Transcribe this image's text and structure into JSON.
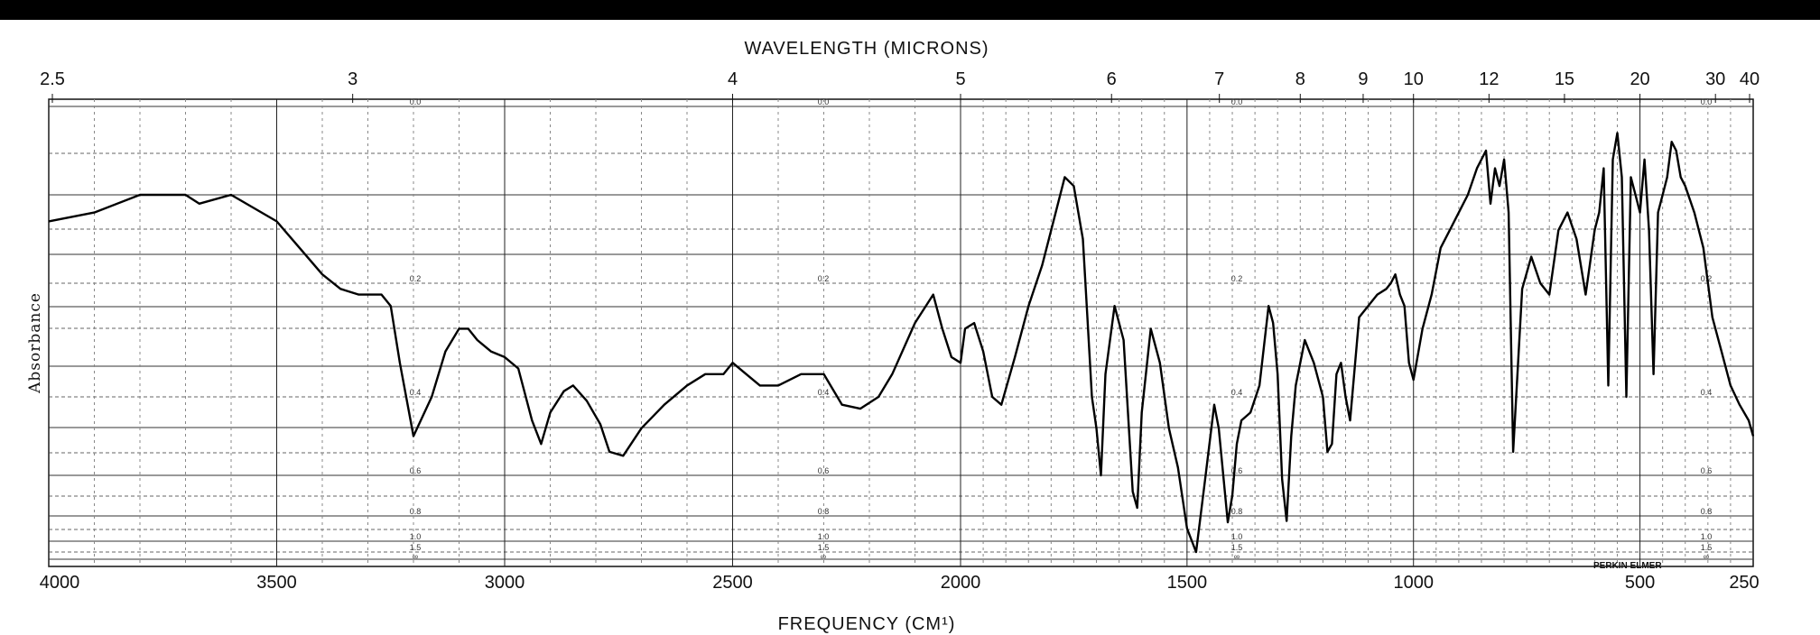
{
  "chart_data": {
    "type": "line",
    "title": "",
    "top_axis_label": "WAVELENGTH (MICRONS)",
    "xlabel": "FREQUENCY (CM¹)",
    "ylabel": "Absorbance",
    "brand": "PERKIN ELMER",
    "x_ticks": [
      "4000",
      "3500",
      "3000",
      "2500",
      "2000",
      "1500",
      "1000",
      "500",
      "250"
    ],
    "top_ticks": [
      "2.5",
      "3",
      "4",
      "5",
      "6",
      "7",
      "8",
      "9",
      "10",
      "12",
      "15",
      "20",
      "30",
      "40"
    ],
    "absorbance_ticks": [
      "0.0",
      "0.2",
      "0.4",
      "0.6",
      "0.8",
      "1.0",
      "1.5",
      "∞"
    ],
    "xlim": [
      4000,
      250
    ],
    "ylim": [
      0,
      1.5
    ],
    "grid": true,
    "series": [
      {
        "name": "",
        "x": [
          4000,
          3900,
          3800,
          3750,
          3700,
          3670,
          3600,
          3500,
          3450,
          3400,
          3360,
          3320,
          3300,
          3270,
          3250,
          3230,
          3200,
          3160,
          3130,
          3100,
          3080,
          3060,
          3030,
          3000,
          2970,
          2940,
          2920,
          2900,
          2870,
          2850,
          2820,
          2790,
          2770,
          2740,
          2700,
          2650,
          2600,
          2560,
          2520,
          2500,
          2470,
          2440,
          2400,
          2350,
          2300,
          2260,
          2220,
          2180,
          2150,
          2100,
          2060,
          2040,
          2020,
          2000,
          1990,
          1970,
          1950,
          1930,
          1910,
          1880,
          1850,
          1820,
          1790,
          1770,
          1750,
          1730,
          1720,
          1710,
          1700,
          1690,
          1680,
          1660,
          1640,
          1620,
          1610,
          1600,
          1580,
          1560,
          1540,
          1520,
          1500,
          1480,
          1460,
          1440,
          1430,
          1410,
          1400,
          1390,
          1380,
          1360,
          1340,
          1320,
          1310,
          1300,
          1290,
          1280,
          1270,
          1260,
          1240,
          1220,
          1200,
          1190,
          1180,
          1170,
          1160,
          1150,
          1140,
          1120,
          1100,
          1080,
          1060,
          1050,
          1040,
          1030,
          1020,
          1010,
          1000,
          980,
          960,
          940,
          920,
          900,
          880,
          860,
          840,
          830,
          820,
          810,
          800,
          790,
          780,
          760,
          740,
          720,
          700,
          680,
          660,
          640,
          620,
          600,
          590,
          580,
          570,
          560,
          550,
          540,
          530,
          520,
          510,
          500,
          490,
          480,
          470,
          460,
          450,
          440,
          430,
          420,
          410,
          400,
          380,
          360,
          340,
          320,
          300,
          280,
          260,
          250
        ],
        "y": [
          0.13,
          0.12,
          0.1,
          0.1,
          0.1,
          0.11,
          0.1,
          0.13,
          0.16,
          0.19,
          0.21,
          0.22,
          0.22,
          0.22,
          0.24,
          0.34,
          0.5,
          0.4,
          0.32,
          0.28,
          0.28,
          0.3,
          0.32,
          0.33,
          0.35,
          0.46,
          0.52,
          0.44,
          0.39,
          0.38,
          0.41,
          0.47,
          0.54,
          0.55,
          0.48,
          0.42,
          0.38,
          0.36,
          0.36,
          0.34,
          0.36,
          0.38,
          0.38,
          0.36,
          0.36,
          0.42,
          0.43,
          0.4,
          0.36,
          0.27,
          0.22,
          0.28,
          0.33,
          0.34,
          0.28,
          0.27,
          0.32,
          0.4,
          0.42,
          0.33,
          0.24,
          0.18,
          0.12,
          0.08,
          0.09,
          0.15,
          0.26,
          0.4,
          0.48,
          0.6,
          0.36,
          0.24,
          0.3,
          0.68,
          0.76,
          0.44,
          0.28,
          0.34,
          0.48,
          0.58,
          0.9,
          1.3,
          0.62,
          0.42,
          0.48,
          0.85,
          0.7,
          0.52,
          0.46,
          0.44,
          0.38,
          0.24,
          0.27,
          0.36,
          0.62,
          0.84,
          0.5,
          0.38,
          0.3,
          0.34,
          0.4,
          0.54,
          0.52,
          0.36,
          0.34,
          0.4,
          0.46,
          0.26,
          0.24,
          0.22,
          0.21,
          0.2,
          0.19,
          0.22,
          0.24,
          0.34,
          0.37,
          0.28,
          0.22,
          0.16,
          0.14,
          0.12,
          0.1,
          0.07,
          0.05,
          0.11,
          0.07,
          0.09,
          0.06,
          0.12,
          0.54,
          0.21,
          0.17,
          0.2,
          0.22,
          0.14,
          0.12,
          0.15,
          0.22,
          0.14,
          0.12,
          0.07,
          0.38,
          0.06,
          0.03,
          0.08,
          0.4,
          0.08,
          0.1,
          0.12,
          0.06,
          0.14,
          0.36,
          0.12,
          0.1,
          0.08,
          0.04,
          0.05,
          0.08,
          0.09,
          0.12,
          0.16,
          0.26,
          0.32,
          0.38,
          0.42,
          0.46,
          0.5
        ]
      }
    ]
  }
}
